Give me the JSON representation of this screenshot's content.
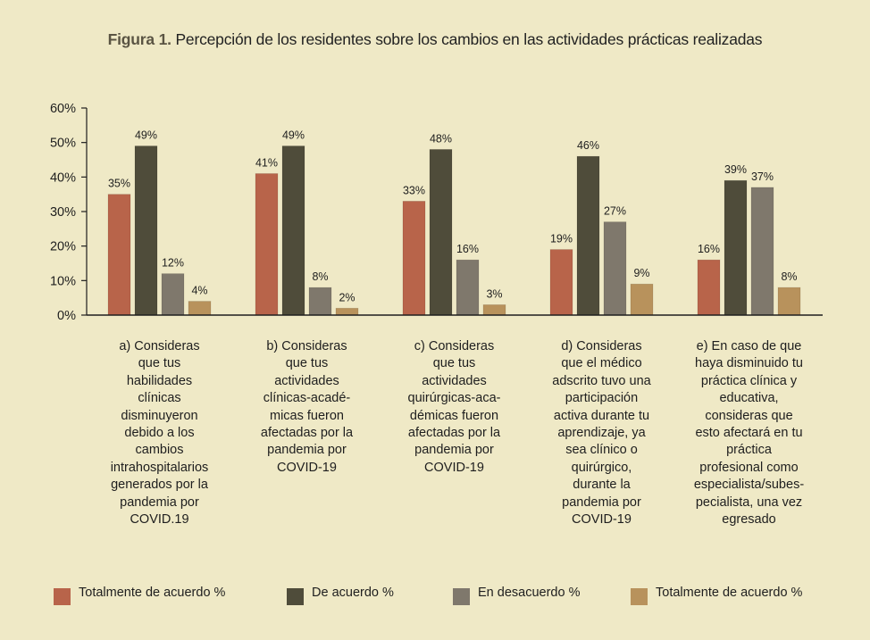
{
  "figure": {
    "label": "Figura 1.",
    "text": "Percepción de los residentes sobre los cambios en las actividades prácticas realizadas"
  },
  "chart_data": {
    "type": "bar",
    "title": "Figura 1. Percepción de los residentes sobre los cambios en las actividades prácticas realizadas",
    "xlabel": "",
    "ylabel": "",
    "ylim": [
      0,
      60
    ],
    "yticks": [
      0,
      10,
      20,
      30,
      40,
      50,
      60
    ],
    "ytick_labels": [
      "0%",
      "10%",
      "20%",
      "30%",
      "40%",
      "50%",
      "60%"
    ],
    "grid": false,
    "legend_position": "bottom",
    "categories": [
      "a) Consideras que tus habilidades clínicas disminuyeron debido a los cambios intrahospitalarios generados por la pandemia por COVID.19",
      "b) Consideras que tus actividades clínicas-acadé-micas fueron afectadas por la pandemia por COVID-19",
      "c) Consideras que tus actividades quirúrgicas-aca-démicas fueron afectadas por la pandemia por COVID-19",
      "d) Consideras que el médico adscrito tuvo una participación activa durante tu aprendizaje, ya sea clínico o quirúrgico, durante la pandemia por COVID-19",
      "e) En caso de que haya disminuido tu práctica clínica y educativa, consideras que esto afectará en tu práctica profesional como especialista/subes-pecialista, una vez egresado"
    ],
    "category_lines": [
      [
        "a) Consideras",
        "que tus",
        "habilidades",
        "clínicas",
        "disminuyeron",
        "debido a los",
        "cambios",
        "intrahospitalarios",
        "generados por la",
        "pandemia por",
        "COVID.19"
      ],
      [
        "b) Consideras",
        "que tus",
        "actividades",
        "clínicas-acadé-",
        "micas fueron",
        "afectadas por la",
        "pandemia por",
        "COVID-19"
      ],
      [
        "c) Consideras",
        "que tus",
        "actividades",
        "quirúrgicas-aca-",
        "démicas fueron",
        "afectadas por la",
        "pandemia por",
        "COVID-19"
      ],
      [
        "d) Consideras",
        "que el médico",
        "adscrito tuvo una",
        "participación",
        "activa durante tu",
        "aprendizaje, ya",
        "sea clínico o",
        "quirúrgico,",
        "durante la",
        "pandemia por",
        "COVID-19"
      ],
      [
        "e) En caso de que",
        "haya disminuido tu",
        "práctica clínica y",
        "educativa,",
        "consideras que",
        "esto afectará en tu",
        "práctica",
        "profesional como",
        "especialista/subes-",
        "pecialista, una vez",
        "egresado"
      ]
    ],
    "series": [
      {
        "name": "Totalmente de acuerdo %",
        "color": "#b8644a",
        "values": [
          35,
          41,
          33,
          19,
          16
        ],
        "labels": [
          "35%",
          "41%",
          "33%",
          "19%",
          "16%"
        ]
      },
      {
        "name": "De acuerdo %",
        "color": "#4f4c3a",
        "values": [
          49,
          49,
          48,
          46,
          39
        ],
        "labels": [
          "49%",
          "49%",
          "48%",
          "46%",
          "39%"
        ]
      },
      {
        "name": "En desacuerdo %",
        "color": "#7f786c",
        "values": [
          12,
          8,
          16,
          27,
          37
        ],
        "labels": [
          "12%",
          "8%",
          "16%",
          "27%",
          "37%"
        ]
      },
      {
        "name": "Totalmente de acuerdo %",
        "color": "#b8925c",
        "values": [
          4,
          2,
          3,
          9,
          8
        ],
        "labels": [
          "4%",
          "2%",
          "3%",
          "9%",
          "8%"
        ]
      }
    ]
  },
  "colors": {
    "background": "#efe9c6",
    "axis": "#1e1e1e",
    "figure_label": "#5a5443"
  }
}
